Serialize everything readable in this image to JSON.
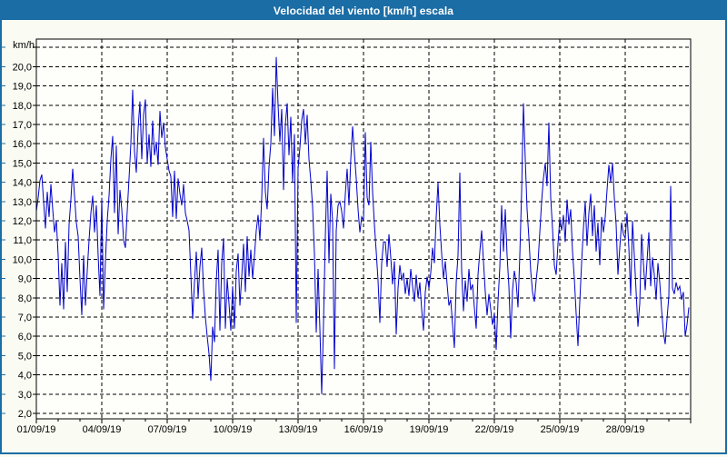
{
  "window": {
    "title": "Velocidad del viento [km/h] escala"
  },
  "colors": {
    "titlebar_bg": "#1B6DA6",
    "window_border": "#1B6DA6",
    "page_bg": "#FAFBF2",
    "plot_bg": "#FEFEFA",
    "line": "#0000CC",
    "grid": "#000000",
    "text": "#000000"
  },
  "chart_data": {
    "type": "line",
    "title": "Velocidad del viento [km/h] escala",
    "grid": true,
    "legend_position": "none",
    "y_axis": {
      "unit_label": "km/h",
      "min": 2.0,
      "max": 21.4,
      "tick_min": 2,
      "tick_max": 20,
      "tick_step": 1,
      "grid_top_value": 21,
      "decimal_separator": ","
    },
    "x_axis": {
      "tick_labels": [
        "01/09/19",
        "04/09/19",
        "07/09/19",
        "10/09/19",
        "13/09/19",
        "16/09/19",
        "19/09/19",
        "22/09/19",
        "25/09/19",
        "28/09/19"
      ],
      "label_interval_days": 3,
      "total_days": 30,
      "minor_tick_days": 1
    },
    "series": [
      {
        "name": "Velocidad del viento",
        "color": "#0000CC",
        "sample_hours_step": 2,
        "start_label": "01/09/19 00:00",
        "values": [
          12.5,
          13.2,
          14.1,
          14.4,
          13.0,
          11.6,
          13.5,
          12.2,
          13.9,
          12.6,
          11.4,
          12.0,
          10.2,
          7.6,
          9.8,
          7.4,
          10.9,
          8.3,
          11.8,
          13.1,
          14.7,
          13.3,
          11.9,
          11.2,
          9.0,
          7.1,
          10.2,
          7.6,
          9.4,
          11.0,
          12.4,
          13.3,
          11.4,
          12.8,
          10.2,
          8.1,
          13.2,
          7.4,
          9.9,
          12.0,
          13.3,
          15.2,
          16.4,
          12.4,
          15.9,
          11.3,
          13.6,
          12.6,
          11.0,
          10.6,
          12.5,
          14.2,
          16.0,
          18.8,
          15.6,
          14.5,
          16.8,
          18.2,
          15.2,
          17.5,
          18.3,
          15.0,
          16.5,
          14.8,
          17.2,
          15.4,
          16.1,
          14.9,
          17.7,
          16.3,
          17.1,
          15.8,
          15.2,
          14.6,
          14.3,
          12.2,
          14.6,
          12.1,
          14.2,
          13.4,
          12.8,
          13.9,
          12.4,
          12.0,
          11.5,
          9.2,
          6.9,
          8.8,
          10.4,
          8.0,
          9.6,
          10.6,
          8.4,
          7.0,
          6.0,
          5.1,
          3.7,
          6.5,
          5.7,
          8.9,
          10.5,
          6.3,
          9.8,
          11.1,
          6.4,
          9.0,
          7.7,
          6.3,
          8.6,
          6.4,
          9.4,
          10.3,
          7.6,
          9.1,
          10.8,
          8.3,
          11.2,
          9.1,
          10.5,
          9.0,
          10.2,
          11.5,
          12.3,
          11.0,
          13.2,
          16.3,
          13.5,
          12.6,
          14.8,
          16.0,
          18.9,
          16.4,
          20.5,
          18.0,
          16.1,
          17.8,
          13.6,
          17.0,
          18.1,
          15.4,
          17.4,
          14.0,
          16.5,
          6.7,
          14.7,
          15.8,
          17.2,
          17.8,
          16.0,
          17.5,
          15.2,
          14.1,
          12.7,
          10.3,
          6.2,
          9.5,
          6.4,
          3.0,
          6.7,
          11.2,
          14.6,
          9.8,
          13.4,
          12.0,
          4.3,
          11.5,
          12.8,
          13.0,
          12.5,
          11.6,
          13.4,
          14.7,
          12.8,
          15.2,
          16.9,
          15.5,
          14.2,
          12.6,
          11.4,
          12.2,
          12.0,
          16.6,
          13.2,
          12.8,
          16.1,
          13.5,
          11.8,
          10.4,
          8.9,
          6.7,
          9.8,
          10.9,
          10.9,
          9.6,
          11.3,
          10.1,
          8.7,
          9.9,
          6.1,
          8.5,
          9.7,
          8.9,
          9.3,
          8.2,
          9.0,
          8.1,
          9.5,
          8.6,
          7.8,
          9.2,
          8.0,
          8.8,
          7.4,
          6.3,
          8.3,
          9.1,
          8.5,
          9.3,
          10.6,
          9.8,
          12.2,
          14.0,
          11.8,
          10.3,
          9.0,
          9.9,
          8.7,
          7.6,
          7.9,
          6.6,
          5.4,
          8.8,
          10.2,
          14.5,
          9.4,
          7.3,
          8.9,
          7.8,
          9.5,
          8.4,
          8.7,
          7.5,
          6.4,
          9.2,
          10.4,
          11.5,
          9.9,
          8.3,
          7.1,
          8.2,
          7.4,
          6.6,
          7.2,
          5.3,
          7.8,
          9.6,
          12.8,
          10.4,
          12.6,
          10.2,
          8.6,
          5.9,
          8.4,
          9.4,
          8.8,
          7.5,
          10.2,
          13.5,
          18.1,
          15.2,
          12.6,
          11.1,
          9.4,
          8.3,
          7.8,
          8.9,
          9.8,
          11.4,
          13.0,
          14.2,
          15.0,
          13.8,
          17.1,
          13.2,
          11.6,
          9.7,
          9.2,
          10.8,
          12.1,
          11.5,
          12.3,
          10.9,
          13.1,
          11.8,
          12.6,
          10.4,
          9.0,
          7.2,
          5.5,
          7.8,
          9.8,
          11.6,
          13.0,
          10.7,
          12.4,
          13.4,
          11.2,
          12.8,
          10.4,
          11.9,
          9.7,
          12.2,
          11.4,
          12.2,
          13.6,
          14.9,
          14.0,
          15.0,
          13.2,
          11.8,
          9.2,
          10.6,
          11.9,
          11.3,
          11.1,
          12.4,
          10.6,
          8.1,
          12.0,
          10.2,
          8.3,
          6.5,
          7.7,
          11.3,
          9.8,
          8.4,
          9.9,
          11.4,
          8.6,
          10.1,
          9.2,
          7.9,
          9.8,
          8.8,
          7.4,
          6.2,
          5.6,
          6.9,
          8.1,
          13.8,
          8.5,
          8.2,
          8.8,
          8.4,
          8.6,
          7.9,
          8.3,
          6.0,
          6.6,
          7.5
        ]
      }
    ]
  }
}
